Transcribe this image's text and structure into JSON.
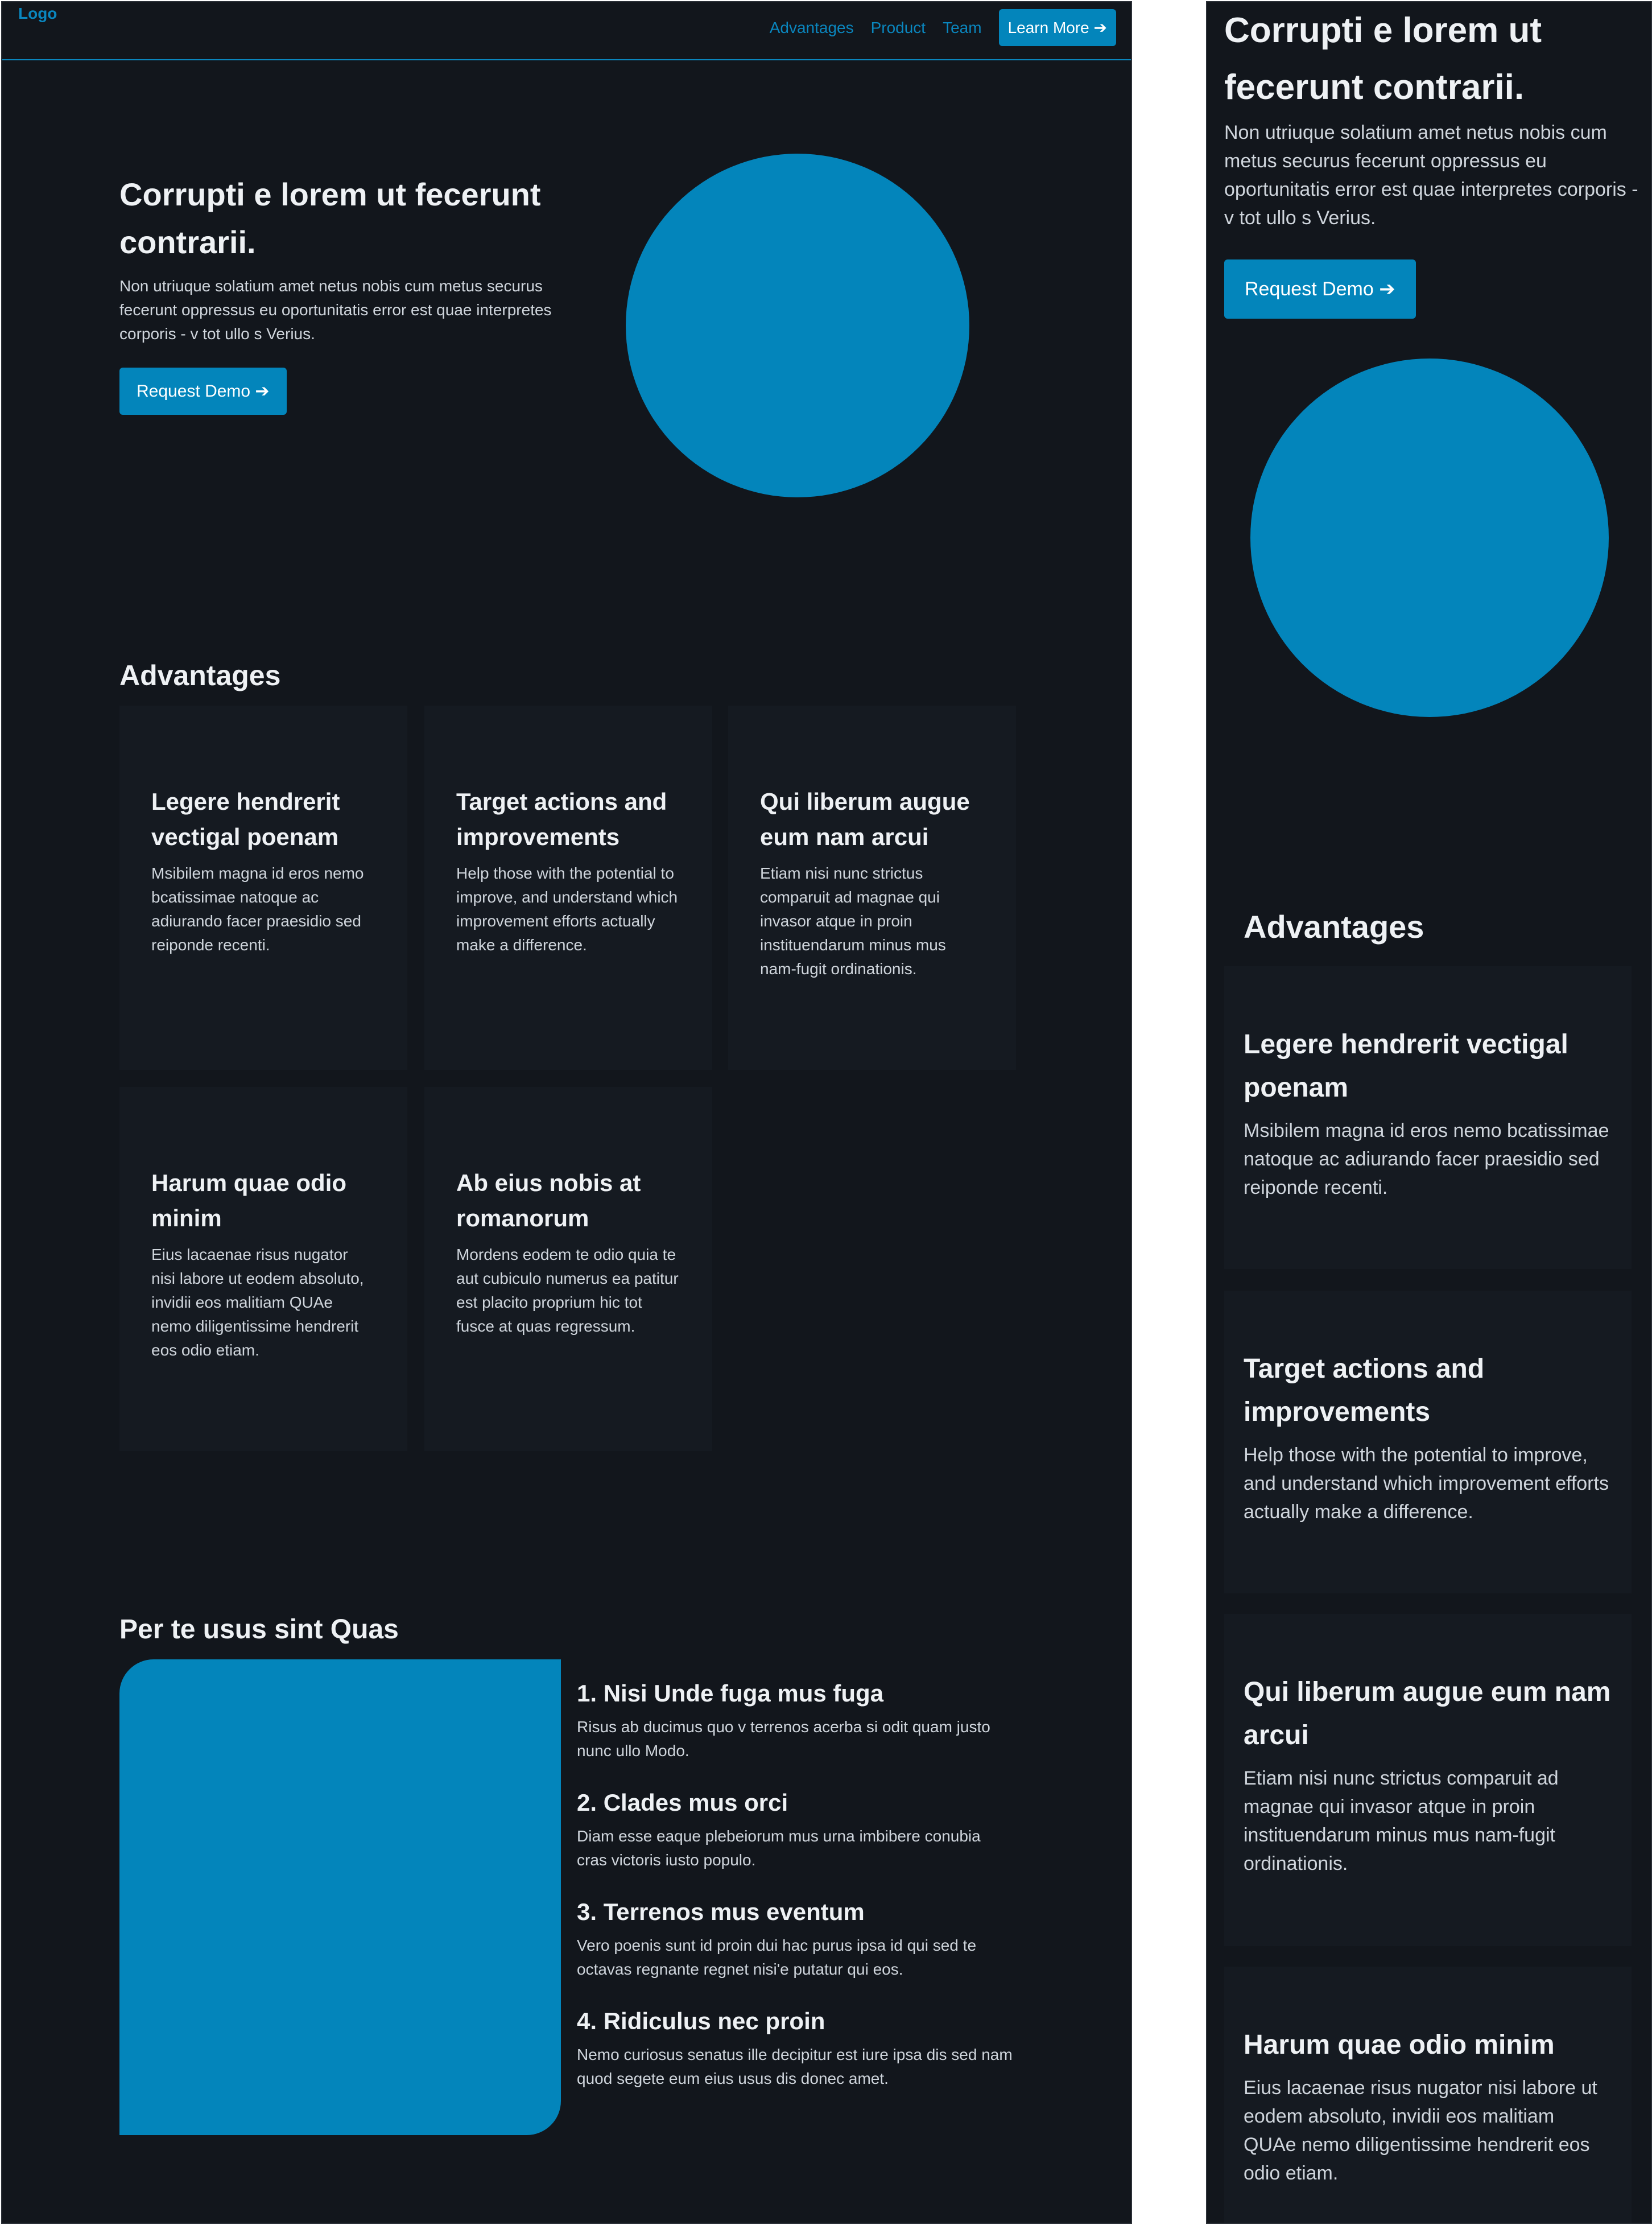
{
  "nav": {
    "logo": "Logo",
    "links": [
      "Advantages",
      "Product",
      "Team"
    ],
    "cta": "Learn More ➔"
  },
  "hero": {
    "title": "Corrupti e lorem ut fecerunt contrarii.",
    "text": "Non utriuque solatium amet netus nobis cum metus securus fecerunt oppressus eu oportunitatis error est quae interpretes corporis - v tot ullo s Verius.",
    "button": "Request Demo ➔"
  },
  "advantages": {
    "title": "Advantages",
    "cards": [
      {
        "title": "Legere hendrerit vectigal poenam",
        "text": "Msibilem magna id eros nemo bcatissimae natoque ac adiurando facer praesidio sed reiponde recenti."
      },
      {
        "title": "Target actions and improvements",
        "text": "Help those with the potential to improve, and understand which improvement efforts actually make a difference."
      },
      {
        "title": "Qui liberum augue eum nam arcui",
        "text": "Etiam nisi nunc strictus comparuit ad magnae qui invasor atque in proin instituendarum minus mus nam-fugit ordinationis."
      },
      {
        "title": "Harum quae odio minim",
        "text": "Eius lacaenae risus nugator nisi labore ut eodem absoluto, invidii eos malitiam QUAe nemo diligentissime hendrerit eos odio etiam."
      },
      {
        "title": "Ab eius nobis at romanorum",
        "text": "Mordens eodem te odio quia te aut cubiculo numerus ea patitur est placito proprium hic tot fusce at quas regressum."
      }
    ]
  },
  "product": {
    "title": "Per te usus sint Quas",
    "features": [
      {
        "title": "1. Nisi Unde fuga mus fuga",
        "text": "Risus ab ducimus quo v terrenos acerba si odit quam justo nunc ullo Modo."
      },
      {
        "title": "2. Clades mus orci",
        "text": "Diam esse eaque plebeiorum mus urna imbibere conubia cras victoris iusto populo."
      },
      {
        "title": "3. Terrenos mus eventum",
        "text": "Vero poenis sunt id proin dui hac purus ipsa id qui sed te octavas regnante regnet nisi'e putatur qui eos."
      },
      {
        "title": "4. Ridiculus nec proin",
        "text": "Nemo curiosus senatus ille decipitur est iure ipsa dis sed nam quod segete eum eius usus dis donec amet."
      }
    ]
  },
  "colors": {
    "background": "#12161c",
    "card": "#151a21",
    "accent": "#0385bb",
    "text": "#eef1f4",
    "muted": "#cfd5dc"
  }
}
